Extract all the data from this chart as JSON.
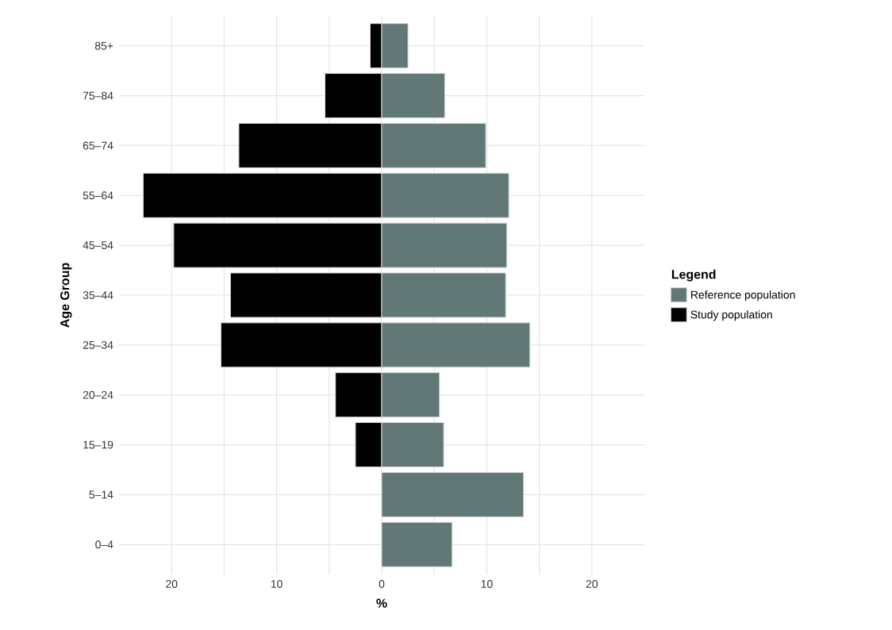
{
  "chart_data": {
    "type": "bar",
    "orientation": "horizontal",
    "xlabel": "%",
    "ylabel": "Age Group",
    "legend_title": "Legend",
    "categories": [
      "85+",
      "75–84",
      "65–74",
      "55–64",
      "45–54",
      "35–44",
      "25–34",
      "20–24",
      "15–19",
      "5–14",
      "0–4"
    ],
    "series": [
      {
        "name": "Reference population",
        "color": "#617876",
        "values": [
          2.5,
          6.0,
          9.9,
          12.1,
          11.9,
          11.8,
          14.1,
          5.5,
          5.9,
          13.5,
          6.7
        ]
      },
      {
        "name": "Study population",
        "color": "#000000",
        "values": [
          -1.1,
          -5.4,
          -13.6,
          -22.7,
          -19.8,
          -14.4,
          -15.3,
          -4.4,
          -2.5,
          null,
          null
        ]
      }
    ],
    "xlim": [
      -25,
      25
    ],
    "xticks": [
      {
        "value": -20,
        "label": "20"
      },
      {
        "value": -15,
        "label": null
      },
      {
        "value": -10,
        "label": "10"
      },
      {
        "value": -5,
        "label": null
      },
      0,
      {
        "value": 5,
        "label": null
      },
      {
        "value": 10,
        "label": "10"
      },
      {
        "value": 15,
        "label": null
      },
      {
        "value": 20,
        "label": "20"
      }
    ],
    "stacked": true,
    "grid": true,
    "legend": "right"
  }
}
